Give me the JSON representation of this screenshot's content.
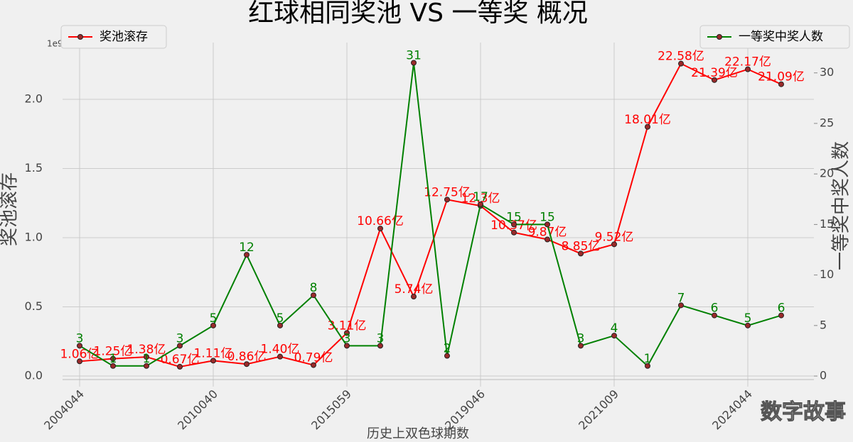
{
  "chart_data": {
    "type": "line",
    "title": "红球相同奖池 VS 一等奖 概况",
    "xlabel": "历史上双色球期数",
    "ylabel": "奖池滚存",
    "y2label": "一等奖中奖人数",
    "y_offset_label": "1e9",
    "watermark": "数字故事",
    "categories": [
      "2004044",
      null,
      null,
      null,
      "2010040",
      null,
      null,
      null,
      "2015059",
      null,
      null,
      null,
      "2019046",
      null,
      null,
      null,
      "2021009",
      null,
      null,
      null,
      "2024044",
      null
    ],
    "series": [
      {
        "name": "奖池滚存",
        "color": "#ff0000",
        "axis": "y",
        "legend": "upper left",
        "values": [
          0.106,
          0.125,
          0.138,
          0.067,
          0.111,
          0.086,
          0.14,
          0.079,
          0.311,
          1.066,
          0.574,
          1.275,
          1.23,
          1.037,
          0.987,
          0.885,
          0.952,
          1.801,
          2.258,
          2.139,
          2.217,
          2.109
        ],
        "value_labels": [
          "1.06亿",
          "1.25亿",
          "1.38亿",
          "0.67亿",
          "1.11亿",
          "0.86亿",
          "1.40亿",
          "0.79亿",
          "3.11亿",
          "10.66亿",
          "5.74亿",
          "12.75亿",
          "12.3亿",
          "10.37亿",
          "9.87亿",
          "8.85亿",
          "9.52亿",
          "18.01亿",
          "22.58亿",
          "21.39亿",
          "22.17亿",
          "21.09亿"
        ]
      },
      {
        "name": "一等奖中奖人数",
        "color": "#008000",
        "axis": "y2",
        "legend": "upper right",
        "values": [
          3,
          1,
          1,
          3,
          5,
          12,
          5,
          8,
          3,
          3,
          31,
          2,
          17,
          15,
          15,
          3,
          4,
          1,
          7,
          6,
          5,
          6
        ]
      }
    ],
    "ylim": [
      -0.077,
      2.41
    ],
    "yticks": [
      {
        "value": 0,
        "label": "0.0"
      },
      0.5,
      {
        "value": 1,
        "label": "1.0"
      },
      1.5,
      {
        "value": 2,
        "label": "2.0"
      }
    ],
    "y2lim": [
      -1.05,
      33.0
    ],
    "y2ticks": [
      0,
      5,
      10,
      15,
      20,
      25,
      30
    ],
    "grid": true
  }
}
